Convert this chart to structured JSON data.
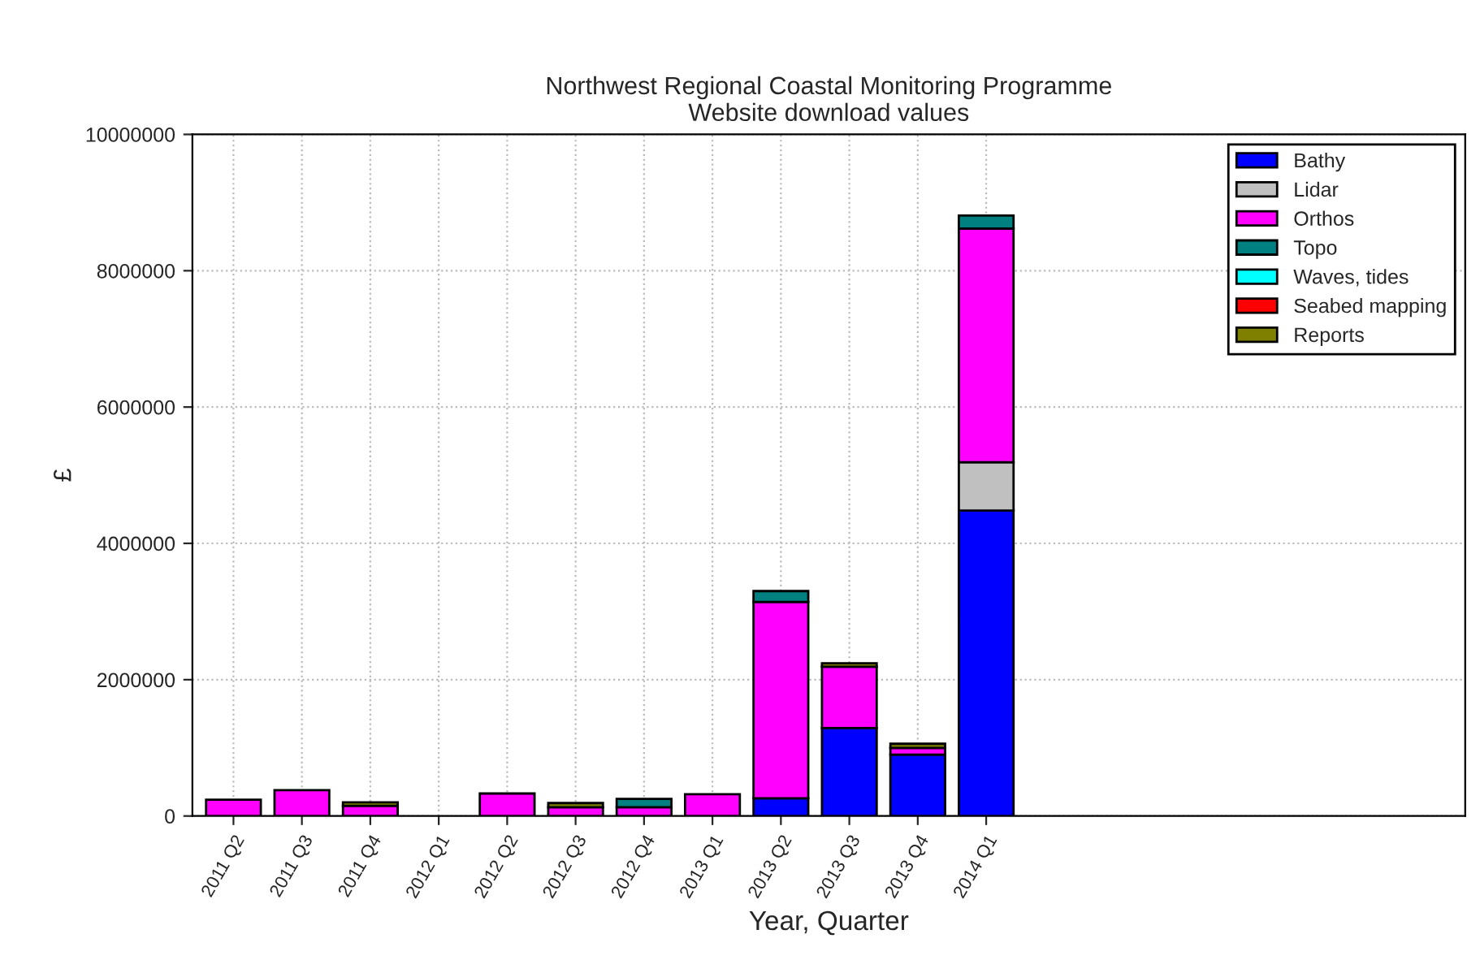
{
  "chart_data": {
    "type": "bar",
    "stacked": true,
    "title": "Northwest Regional Coastal Monitoring Programme\nWebsite download values",
    "xlabel": "Year, Quarter",
    "ylabel": "£",
    "categories": [
      "2011 Q2",
      "2011 Q3",
      "2011 Q4",
      "2012 Q1",
      "2012 Q2",
      "2012 Q3",
      "2012 Q4",
      "2013 Q1",
      "2013 Q2",
      "2013 Q3",
      "2013 Q4",
      "2014 Q1"
    ],
    "series": [
      {
        "name": "Bathy",
        "color": "#0000ff",
        "values": [
          null,
          null,
          null,
          null,
          null,
          null,
          null,
          null,
          260000,
          1290000,
          900000,
          4480000
        ]
      },
      {
        "name": "Lidar",
        "color": "#c0c0c0",
        "values": [
          null,
          null,
          null,
          null,
          null,
          null,
          null,
          null,
          null,
          null,
          null,
          710000
        ]
      },
      {
        "name": "Orthos",
        "color": "#ff00ff",
        "values": [
          240000,
          380000,
          150000,
          null,
          330000,
          130000,
          130000,
          320000,
          2880000,
          900000,
          100000,
          3430000
        ]
      },
      {
        "name": "Topo",
        "color": "#008080",
        "values": [
          null,
          null,
          null,
          null,
          null,
          null,
          120000,
          null,
          160000,
          null,
          null,
          190000
        ]
      },
      {
        "name": "Waves, tides",
        "color": "#00ffff",
        "values": [
          null,
          null,
          null,
          null,
          null,
          null,
          null,
          null,
          null,
          null,
          null,
          null
        ]
      },
      {
        "name": "Seabed mapping",
        "color": "#ff0000",
        "values": [
          null,
          null,
          null,
          null,
          null,
          null,
          null,
          null,
          null,
          null,
          null,
          null
        ]
      },
      {
        "name": "Reports",
        "color": "#808000",
        "values": [
          null,
          null,
          50000,
          null,
          null,
          60000,
          null,
          null,
          null,
          50000,
          60000,
          null
        ]
      }
    ],
    "ylim": [
      0,
      10000000
    ],
    "yticks": [
      0,
      2000000,
      4000000,
      6000000,
      8000000,
      10000000
    ],
    "grid": true,
    "legend": "top right"
  }
}
